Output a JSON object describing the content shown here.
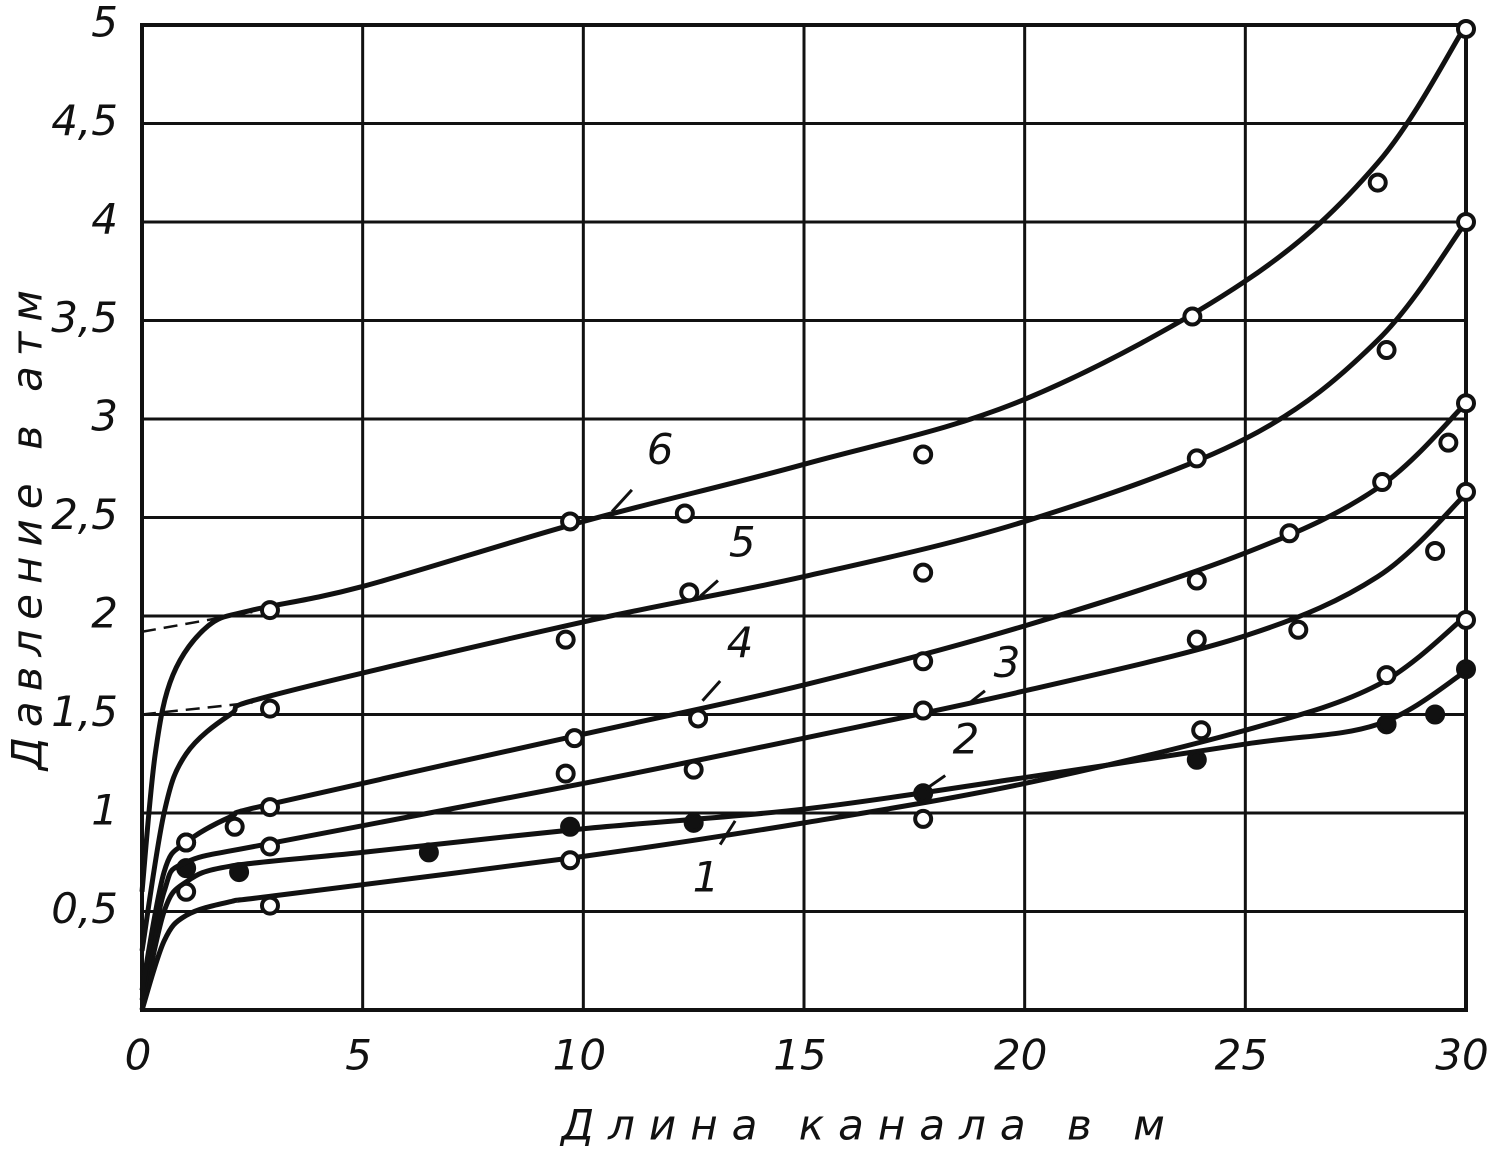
{
  "chart_data": {
    "type": "line",
    "x_label": "Длина канала в м",
    "y_label": "Давление в атм",
    "xlim": [
      0,
      30
    ],
    "xticks": [
      0,
      5,
      10,
      15,
      20,
      25,
      30
    ],
    "ylim": [
      0,
      5
    ],
    "yticks": [
      {
        "value": 0.5,
        "label": "0,5"
      },
      1,
      {
        "value": 1.5,
        "label": "1,5"
      },
      2,
      {
        "value": 2.5,
        "label": "2,5"
      },
      3,
      {
        "value": 3.5,
        "label": "3,5"
      },
      4,
      {
        "value": 4.5,
        "label": "4,5"
      },
      5
    ],
    "grid": true,
    "color": "#111111",
    "series": [
      {
        "name": "1",
        "marker": "open",
        "x": [
          0,
          0.5,
          1,
          2,
          3,
          10,
          15,
          20,
          25,
          28,
          30
        ],
        "values": [
          0,
          0.35,
          0.48,
          0.55,
          0.58,
          0.78,
          0.95,
          1.15,
          1.42,
          1.65,
          2.0
        ],
        "points_x": [
          1,
          2.9,
          9.7,
          17.7,
          24,
          28.2,
          30
        ],
        "points": [
          0.6,
          0.53,
          0.76,
          0.97,
          1.42,
          1.7,
          1.98
        ]
      },
      {
        "name": "2",
        "marker": "filled",
        "x": [
          0,
          0.5,
          1,
          2,
          5,
          10,
          15,
          20,
          25,
          28,
          30
        ],
        "values": [
          0,
          0.5,
          0.65,
          0.73,
          0.8,
          0.92,
          1.02,
          1.18,
          1.35,
          1.45,
          1.72
        ],
        "points_x": [
          1,
          2.2,
          6.5,
          9.7,
          12.5,
          17.7,
          23.9,
          28.2,
          29.3,
          30
        ],
        "points": [
          0.72,
          0.7,
          0.8,
          0.93,
          0.95,
          1.1,
          1.27,
          1.45,
          1.5,
          1.73
        ]
      },
      {
        "name": "3",
        "marker": "open",
        "x": [
          0,
          0.5,
          1,
          3,
          10,
          15,
          20,
          25,
          28,
          30
        ],
        "values": [
          0.05,
          0.6,
          0.75,
          0.85,
          1.15,
          1.38,
          1.62,
          1.9,
          2.2,
          2.62
        ],
        "points_x": [
          1,
          2.9,
          9.6,
          12.5,
          17.7,
          23.9,
          26.2,
          29.3,
          30
        ],
        "points": [
          0.85,
          0.83,
          1.2,
          1.22,
          1.52,
          1.88,
          1.93,
          2.33,
          2.63
        ]
      },
      {
        "name": "4",
        "marker": "open",
        "x": [
          0,
          0.5,
          1,
          2,
          3,
          10,
          15,
          20,
          25,
          28,
          30
        ],
        "values": [
          0.1,
          0.7,
          0.85,
          0.98,
          1.05,
          1.4,
          1.65,
          1.95,
          2.32,
          2.65,
          3.08
        ],
        "points_x": [
          1,
          2.1,
          2.9,
          9.8,
          12.6,
          17.7,
          23.9,
          26,
          28.1,
          29.6,
          30
        ],
        "points": [
          0.85,
          0.93,
          1.03,
          1.38,
          1.48,
          1.77,
          2.18,
          2.42,
          2.68,
          2.88,
          3.08
        ]
      },
      {
        "name": "5",
        "marker": "open",
        "x": [
          0,
          0.5,
          1,
          2,
          3,
          10,
          15,
          20,
          25,
          28,
          30
        ],
        "values": [
          0.3,
          1.0,
          1.3,
          1.5,
          1.6,
          1.97,
          2.2,
          2.48,
          2.9,
          3.4,
          4.0
        ],
        "points_x": [
          2.9,
          9.6,
          12.4,
          17.7,
          23.9,
          28.2,
          30
        ],
        "points": [
          1.53,
          1.88,
          2.12,
          2.22,
          2.8,
          3.35,
          4.0
        ],
        "dashed_x": [
          0,
          2.5
        ],
        "dashed": [
          1.5,
          1.56
        ]
      },
      {
        "name": "6",
        "marker": "open",
        "x": [
          0,
          0.3,
          0.7,
          1.5,
          2.5,
          5,
          10,
          15,
          20,
          25,
          28,
          30
        ],
        "values": [
          0.6,
          1.3,
          1.7,
          1.95,
          2.03,
          2.15,
          2.48,
          2.77,
          3.1,
          3.7,
          4.3,
          5.0
        ],
        "points_x": [
          2.9,
          9.7,
          12.3,
          17.7,
          23.8,
          28,
          30
        ],
        "points": [
          2.03,
          2.48,
          2.52,
          2.82,
          3.52,
          4.2,
          4.98
        ],
        "dashed_x": [
          0,
          2.5
        ],
        "dashed": [
          1.92,
          2.02
        ]
      }
    ]
  }
}
